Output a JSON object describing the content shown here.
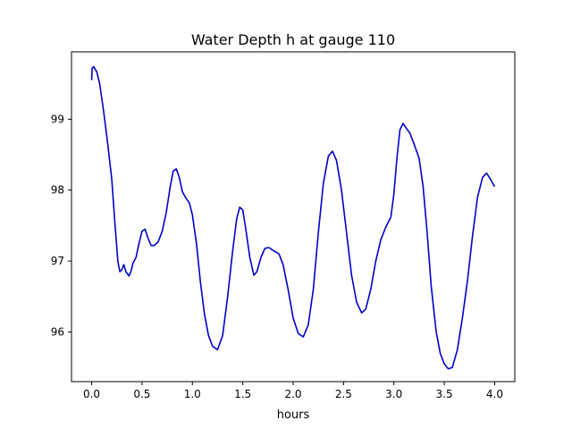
{
  "chart_data": {
    "type": "line",
    "title": "Water Depth h at gauge 110",
    "xlabel": "hours",
    "ylabel": "",
    "xlim": [
      -0.2,
      4.2
    ],
    "ylim": [
      95.3,
      99.95
    ],
    "xticks": [
      0.0,
      0.5,
      1.0,
      1.5,
      2.0,
      2.5,
      3.0,
      3.5,
      4.0
    ],
    "xtick_labels": [
      "0.0",
      "0.5",
      "1.0",
      "1.5",
      "2.0",
      "2.5",
      "3.0",
      "3.5",
      "4.0"
    ],
    "yticks": [
      96,
      97,
      98,
      99
    ],
    "ytick_labels": [
      "96",
      "97",
      "98",
      "99"
    ],
    "grid": false,
    "series": [
      {
        "color": "#0000cc",
        "points": [
          [
            0.0,
            99.55
          ],
          [
            0.005,
            99.72
          ],
          [
            0.02,
            99.74
          ],
          [
            0.05,
            99.67
          ],
          [
            0.08,
            99.5
          ],
          [
            0.12,
            99.1
          ],
          [
            0.16,
            98.65
          ],
          [
            0.2,
            98.15
          ],
          [
            0.23,
            97.55
          ],
          [
            0.26,
            97.0
          ],
          [
            0.28,
            96.85
          ],
          [
            0.3,
            96.88
          ],
          [
            0.32,
            96.95
          ],
          [
            0.34,
            96.85
          ],
          [
            0.37,
            96.79
          ],
          [
            0.39,
            96.85
          ],
          [
            0.41,
            96.97
          ],
          [
            0.44,
            97.05
          ],
          [
            0.47,
            97.25
          ],
          [
            0.5,
            97.42
          ],
          [
            0.53,
            97.45
          ],
          [
            0.56,
            97.32
          ],
          [
            0.59,
            97.22
          ],
          [
            0.62,
            97.22
          ],
          [
            0.66,
            97.27
          ],
          [
            0.7,
            97.42
          ],
          [
            0.74,
            97.68
          ],
          [
            0.78,
            98.05
          ],
          [
            0.81,
            98.27
          ],
          [
            0.84,
            98.3
          ],
          [
            0.87,
            98.18
          ],
          [
            0.9,
            97.98
          ],
          [
            0.93,
            97.9
          ],
          [
            0.97,
            97.82
          ],
          [
            1.0,
            97.65
          ],
          [
            1.04,
            97.25
          ],
          [
            1.08,
            96.7
          ],
          [
            1.12,
            96.25
          ],
          [
            1.16,
            95.95
          ],
          [
            1.2,
            95.8
          ],
          [
            1.25,
            95.75
          ],
          [
            1.3,
            95.95
          ],
          [
            1.35,
            96.5
          ],
          [
            1.4,
            97.15
          ],
          [
            1.44,
            97.6
          ],
          [
            1.47,
            97.76
          ],
          [
            1.5,
            97.72
          ],
          [
            1.53,
            97.45
          ],
          [
            1.57,
            97.05
          ],
          [
            1.61,
            96.8
          ],
          [
            1.64,
            96.85
          ],
          [
            1.68,
            97.05
          ],
          [
            1.72,
            97.18
          ],
          [
            1.76,
            97.19
          ],
          [
            1.8,
            97.15
          ],
          [
            1.86,
            97.1
          ],
          [
            1.9,
            96.95
          ],
          [
            1.95,
            96.6
          ],
          [
            2.0,
            96.2
          ],
          [
            2.05,
            95.98
          ],
          [
            2.1,
            95.93
          ],
          [
            2.15,
            96.1
          ],
          [
            2.2,
            96.6
          ],
          [
            2.25,
            97.4
          ],
          [
            2.3,
            98.1
          ],
          [
            2.35,
            98.48
          ],
          [
            2.39,
            98.55
          ],
          [
            2.43,
            98.42
          ],
          [
            2.48,
            98.0
          ],
          [
            2.53,
            97.4
          ],
          [
            2.58,
            96.8
          ],
          [
            2.63,
            96.42
          ],
          [
            2.68,
            96.27
          ],
          [
            2.72,
            96.32
          ],
          [
            2.77,
            96.6
          ],
          [
            2.82,
            97.0
          ],
          [
            2.87,
            97.3
          ],
          [
            2.92,
            97.48
          ],
          [
            2.97,
            97.62
          ],
          [
            3.0,
            97.95
          ],
          [
            3.03,
            98.45
          ],
          [
            3.06,
            98.85
          ],
          [
            3.09,
            98.94
          ],
          [
            3.12,
            98.88
          ],
          [
            3.16,
            98.8
          ],
          [
            3.2,
            98.65
          ],
          [
            3.25,
            98.45
          ],
          [
            3.29,
            98.05
          ],
          [
            3.33,
            97.4
          ],
          [
            3.37,
            96.65
          ],
          [
            3.42,
            96.0
          ],
          [
            3.46,
            95.7
          ],
          [
            3.5,
            95.55
          ],
          [
            3.54,
            95.48
          ],
          [
            3.58,
            95.5
          ],
          [
            3.63,
            95.75
          ],
          [
            3.68,
            96.2
          ],
          [
            3.73,
            96.72
          ],
          [
            3.78,
            97.35
          ],
          [
            3.83,
            97.9
          ],
          [
            3.88,
            98.18
          ],
          [
            3.92,
            98.24
          ],
          [
            3.96,
            98.15
          ],
          [
            4.0,
            98.05
          ]
        ]
      }
    ]
  }
}
